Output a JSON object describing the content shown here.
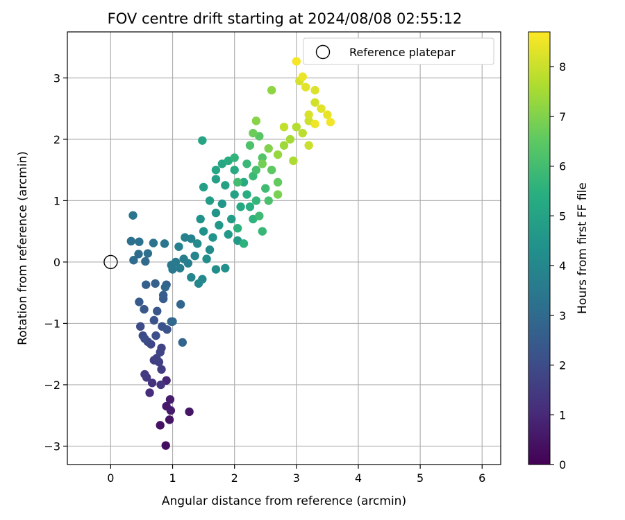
{
  "chart_data": {
    "type": "scatter",
    "title": "FOV centre drift starting at 2024/08/08 02:55:12",
    "xlabel": "Angular distance from reference (arcmin)",
    "ylabel": "Rotation from reference (arcmin)",
    "xlim": [
      -0.7,
      6.3
    ],
    "ylim": [
      -3.3,
      3.75
    ],
    "xticks": [
      0,
      1,
      2,
      3,
      4,
      5,
      6
    ],
    "yticks": [
      -3,
      -2,
      -1,
      0,
      1,
      2,
      3
    ],
    "grid": true,
    "legend": {
      "placement": "top-right",
      "entries": [
        "Reference platepar"
      ]
    },
    "reference_point": {
      "x": 0,
      "y": 0,
      "label": "Reference platepar"
    },
    "colorbar": {
      "label": "Hours from first FF file",
      "colormap": "viridis",
      "range": [
        0,
        8.7
      ],
      "ticks": [
        0,
        1,
        2,
        3,
        4,
        5,
        6,
        7,
        8
      ]
    },
    "points": [
      [
        0.89,
        -2.99,
        0.3
      ],
      [
        0.8,
        -2.66,
        0.4
      ],
      [
        0.95,
        -2.57,
        0.45
      ],
      [
        1.27,
        -2.44,
        0.5
      ],
      [
        0.9,
        -2.35,
        0.6
      ],
      [
        0.97,
        -2.42,
        0.65
      ],
      [
        0.96,
        -2.24,
        0.7
      ],
      [
        0.9,
        -1.93,
        0.9
      ],
      [
        0.63,
        -2.13,
        1.1
      ],
      [
        0.67,
        -1.97,
        1.2
      ],
      [
        0.81,
        -2.0,
        1.3
      ],
      [
        0.58,
        -1.88,
        1.4
      ],
      [
        0.55,
        -1.83,
        1.5
      ],
      [
        0.82,
        -1.75,
        1.55
      ],
      [
        0.7,
        -1.6,
        1.6
      ],
      [
        0.78,
        -1.63,
        1.65
      ],
      [
        0.74,
        -1.57,
        1.7
      ],
      [
        0.82,
        -1.4,
        1.75
      ],
      [
        0.8,
        -1.47,
        1.8
      ],
      [
        0.65,
        -1.34,
        1.85
      ],
      [
        0.6,
        -1.3,
        1.9
      ],
      [
        0.52,
        -1.2,
        1.95
      ],
      [
        0.48,
        -1.05,
        2.0
      ],
      [
        0.55,
        -1.25,
        2.05
      ],
      [
        0.73,
        -1.2,
        2.1
      ],
      [
        0.83,
        -1.05,
        2.15
      ],
      [
        0.7,
        -0.95,
        2.2
      ],
      [
        0.91,
        -1.1,
        2.25
      ],
      [
        0.75,
        -0.8,
        2.3
      ],
      [
        0.54,
        -0.77,
        2.35
      ],
      [
        0.46,
        -0.65,
        2.4
      ],
      [
        0.85,
        -0.6,
        2.5
      ],
      [
        0.85,
        -0.54,
        2.55
      ],
      [
        0.9,
        -0.37,
        2.6
      ],
      [
        0.72,
        -0.35,
        2.65
      ],
      [
        0.57,
        -0.37,
        2.7
      ],
      [
        0.98,
        -0.97,
        2.75
      ],
      [
        1.16,
        -1.31,
        2.8
      ],
      [
        1.13,
        -0.69,
        2.85
      ],
      [
        0.88,
        -0.41,
        2.9
      ],
      [
        1.0,
        -0.97,
        2.95
      ],
      [
        0.56,
        0.01,
        3.0
      ],
      [
        0.37,
        0.03,
        3.05
      ],
      [
        0.45,
        0.13,
        3.1
      ],
      [
        0.6,
        0.14,
        3.15
      ],
      [
        0.33,
        0.34,
        3.2
      ],
      [
        0.46,
        0.33,
        3.25
      ],
      [
        0.69,
        0.31,
        3.3
      ],
      [
        0.87,
        0.3,
        3.35
      ],
      [
        0.36,
        0.76,
        3.4
      ],
      [
        0.98,
        -0.05,
        3.45
      ],
      [
        1.0,
        -0.12,
        3.5
      ],
      [
        1.05,
        0.0,
        3.55
      ],
      [
        1.12,
        -0.1,
        3.6
      ],
      [
        1.18,
        0.05,
        3.65
      ],
      [
        1.25,
        -0.02,
        3.7
      ],
      [
        1.1,
        0.25,
        3.75
      ],
      [
        1.2,
        0.4,
        3.8
      ],
      [
        1.3,
        0.38,
        3.85
      ],
      [
        1.36,
        0.1,
        3.9
      ],
      [
        1.3,
        -0.25,
        3.95
      ],
      [
        1.42,
        -0.35,
        4.0
      ],
      [
        1.48,
        -0.28,
        4.05
      ],
      [
        1.4,
        0.3,
        4.1
      ],
      [
        1.6,
        0.2,
        4.15
      ],
      [
        1.55,
        0.05,
        4.2
      ],
      [
        1.7,
        -0.12,
        4.25
      ],
      [
        1.85,
        -0.1,
        4.3
      ],
      [
        1.45,
        0.7,
        4.35
      ],
      [
        1.5,
        0.5,
        4.4
      ],
      [
        1.65,
        0.4,
        4.45
      ],
      [
        1.7,
        0.8,
        4.5
      ],
      [
        1.8,
        0.95,
        4.55
      ],
      [
        1.75,
        0.6,
        4.6
      ],
      [
        1.9,
        0.45,
        4.65
      ],
      [
        2.05,
        0.35,
        4.7
      ],
      [
        1.95,
        0.7,
        4.75
      ],
      [
        1.6,
        1.0,
        4.8
      ],
      [
        1.5,
        1.22,
        4.85
      ],
      [
        1.7,
        1.35,
        4.9
      ],
      [
        1.85,
        1.25,
        4.95
      ],
      [
        2.0,
        1.1,
        5.0
      ],
      [
        1.48,
        1.98,
        5.05
      ],
      [
        1.7,
        1.5,
        5.1
      ],
      [
        1.8,
        1.6,
        5.15
      ],
      [
        2.1,
        0.9,
        5.2
      ],
      [
        2.15,
        1.3,
        5.25
      ],
      [
        2.0,
        1.5,
        5.3
      ],
      [
        1.9,
        1.65,
        5.35
      ],
      [
        2.2,
        1.1,
        5.4
      ],
      [
        2.25,
        0.9,
        5.45
      ],
      [
        2.05,
        0.55,
        5.5
      ],
      [
        2.15,
        0.3,
        5.55
      ],
      [
        2.3,
        0.7,
        5.6
      ],
      [
        2.0,
        1.7,
        5.65
      ],
      [
        2.35,
        1.0,
        5.7
      ],
      [
        2.45,
        0.5,
        5.75
      ],
      [
        2.2,
        1.6,
        5.8
      ],
      [
        2.3,
        1.4,
        5.85
      ],
      [
        2.4,
        0.75,
        5.9
      ],
      [
        2.5,
        1.2,
        5.95
      ],
      [
        2.05,
        1.3,
        6.0
      ],
      [
        2.35,
        1.5,
        6.1
      ],
      [
        2.55,
        1.0,
        6.15
      ],
      [
        2.25,
        1.9,
        6.2
      ],
      [
        2.45,
        1.7,
        6.3
      ],
      [
        2.4,
        2.05,
        6.4
      ],
      [
        2.6,
        1.5,
        6.5
      ],
      [
        2.7,
        1.3,
        6.6
      ],
      [
        2.3,
        2.1,
        6.7
      ],
      [
        2.45,
        1.6,
        6.8
      ],
      [
        2.7,
        1.1,
        6.9
      ],
      [
        2.55,
        1.85,
        7.0
      ],
      [
        2.35,
        2.3,
        7.1
      ],
      [
        2.6,
        2.8,
        7.2
      ],
      [
        2.7,
        1.75,
        7.3
      ],
      [
        2.8,
        1.9,
        7.4
      ],
      [
        2.9,
        2.0,
        7.5
      ],
      [
        2.95,
        1.65,
        7.6
      ],
      [
        3.0,
        2.2,
        7.7
      ],
      [
        3.1,
        2.1,
        7.8
      ],
      [
        2.8,
        2.2,
        7.9
      ],
      [
        3.2,
        1.9,
        8.0
      ],
      [
        3.2,
        2.3,
        8.05
      ],
      [
        3.3,
        2.6,
        8.1
      ],
      [
        3.05,
        2.95,
        8.15
      ],
      [
        3.2,
        2.4,
        8.2
      ],
      [
        3.3,
        2.8,
        8.25
      ],
      [
        3.4,
        2.5,
        8.3
      ],
      [
        3.15,
        2.85,
        8.35
      ],
      [
        3.5,
        2.4,
        8.4
      ],
      [
        3.1,
        3.02,
        8.45
      ],
      [
        3.3,
        2.25,
        8.5
      ],
      [
        3.55,
        2.28,
        8.55
      ],
      [
        3.0,
        3.27,
        8.6
      ]
    ]
  }
}
